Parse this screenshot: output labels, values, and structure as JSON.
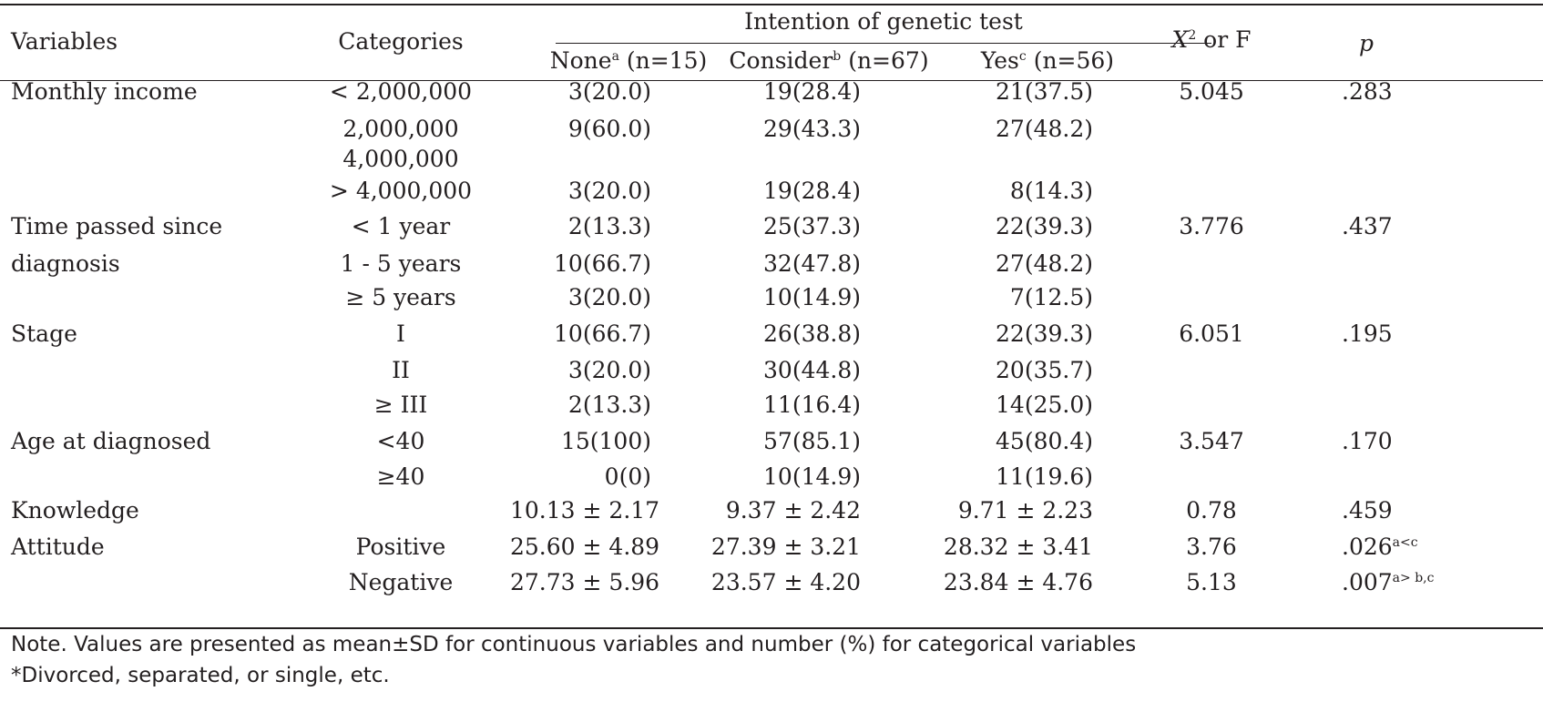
{
  "header": {
    "variables": "Variables",
    "categories": "Categories",
    "group_title": "Intention of genetic test",
    "col_none": {
      "label": "None",
      "sup": "a",
      "n": "(n=15)"
    },
    "col_consider": {
      "label": "Consider",
      "sup": "b",
      "n": "(n=67)"
    },
    "col_yes": {
      "label": "Yes",
      "sup": "c",
      "n": "(n=56)"
    },
    "stat": {
      "x": "X",
      "sup": "2",
      "rest": " or F"
    },
    "p": "p"
  },
  "rows": [
    {
      "variable": "Monthly income",
      "category": "< 2,000,000",
      "none": "3(20.0)",
      "consider": "19(28.4)",
      "yes": "21(37.5)",
      "stat": "5.045",
      "p": "",
      "p_plain": ".283",
      "p_sup": ""
    },
    {
      "variable": "",
      "category": "2,000,000",
      "none": "9(60.0)",
      "consider": "29(43.3)",
      "yes": "27(48.2)",
      "stat": "",
      "p_plain": "",
      "p_sup": ""
    },
    {
      "variable": "",
      "category": "4,000,000",
      "none": "",
      "consider": "",
      "yes": "",
      "stat": "",
      "p_plain": "",
      "p_sup": ""
    },
    {
      "variable": "",
      "category": "> 4,000,000",
      "none": "3(20.0)",
      "consider": "19(28.4)",
      "yes": "8(14.3)",
      "stat": "",
      "p_plain": "",
      "p_sup": ""
    },
    {
      "variable": "Time passed since",
      "category": "< 1 year",
      "none": "2(13.3)",
      "consider": "25(37.3)",
      "yes": "22(39.3)",
      "stat": "3.776",
      "p_plain": ".437",
      "p_sup": ""
    },
    {
      "variable": "diagnosis",
      "category": "1 - 5 years",
      "none": "10(66.7)",
      "consider": "32(47.8)",
      "yes": "27(48.2)",
      "stat": "",
      "p_plain": "",
      "p_sup": ""
    },
    {
      "variable": "",
      "category": "≥ 5 years",
      "none": "3(20.0)",
      "consider": "10(14.9)",
      "yes": "7(12.5)",
      "stat": "",
      "p_plain": "",
      "p_sup": ""
    },
    {
      "variable": "Stage",
      "category": "I",
      "none": "10(66.7)",
      "consider": "26(38.8)",
      "yes": "22(39.3)",
      "stat": "6.051",
      "p_plain": ".195",
      "p_sup": ""
    },
    {
      "variable": "",
      "category": "II",
      "none": "3(20.0)",
      "consider": "30(44.8)",
      "yes": "20(35.7)",
      "stat": "",
      "p_plain": "",
      "p_sup": ""
    },
    {
      "variable": "",
      "category": "≥ III",
      "none": "2(13.3)",
      "consider": "11(16.4)",
      "yes": "14(25.0)",
      "stat": "",
      "p_plain": "",
      "p_sup": ""
    },
    {
      "variable": "Age at diagnosed",
      "category": "<40",
      "none": "15(100)",
      "consider": "57(85.1)",
      "yes": "45(80.4)",
      "stat": "3.547",
      "p_plain": ".170",
      "p_sup": ""
    },
    {
      "variable": "",
      "category": "≥40",
      "none": "0(0)",
      "consider": "10(14.9)",
      "yes": "11(19.6)",
      "stat": "",
      "p_plain": "",
      "p_sup": ""
    },
    {
      "variable": "Knowledge",
      "category": "",
      "none": "10.13 ± 2.17",
      "consider": "9.37 ± 2.42",
      "yes": "9.71 ± 2.23",
      "stat": "0.78",
      "p_plain": ".459",
      "p_sup": ""
    },
    {
      "variable": "Attitude",
      "category": "Positive",
      "none": "25.60 ± 4.89",
      "consider": "27.39 ± 3.21",
      "yes": "28.32 ± 3.41",
      "stat": "3.76",
      "p_plain": ".026",
      "p_sup": "a<c"
    },
    {
      "variable": "",
      "category": "Negative",
      "none": "27.73 ± 5.96",
      "consider": "23.57 ± 4.20",
      "yes": "23.84 ± 4.76",
      "stat": "5.13",
      "p_plain": ".007",
      "p_sup": "a> b,c"
    }
  ],
  "notes": {
    "line1": "Note. Values are presented as mean±SD for continuous variables and number (%) for categorical variables",
    "line2": "*Divorced, separated, or single, etc."
  }
}
